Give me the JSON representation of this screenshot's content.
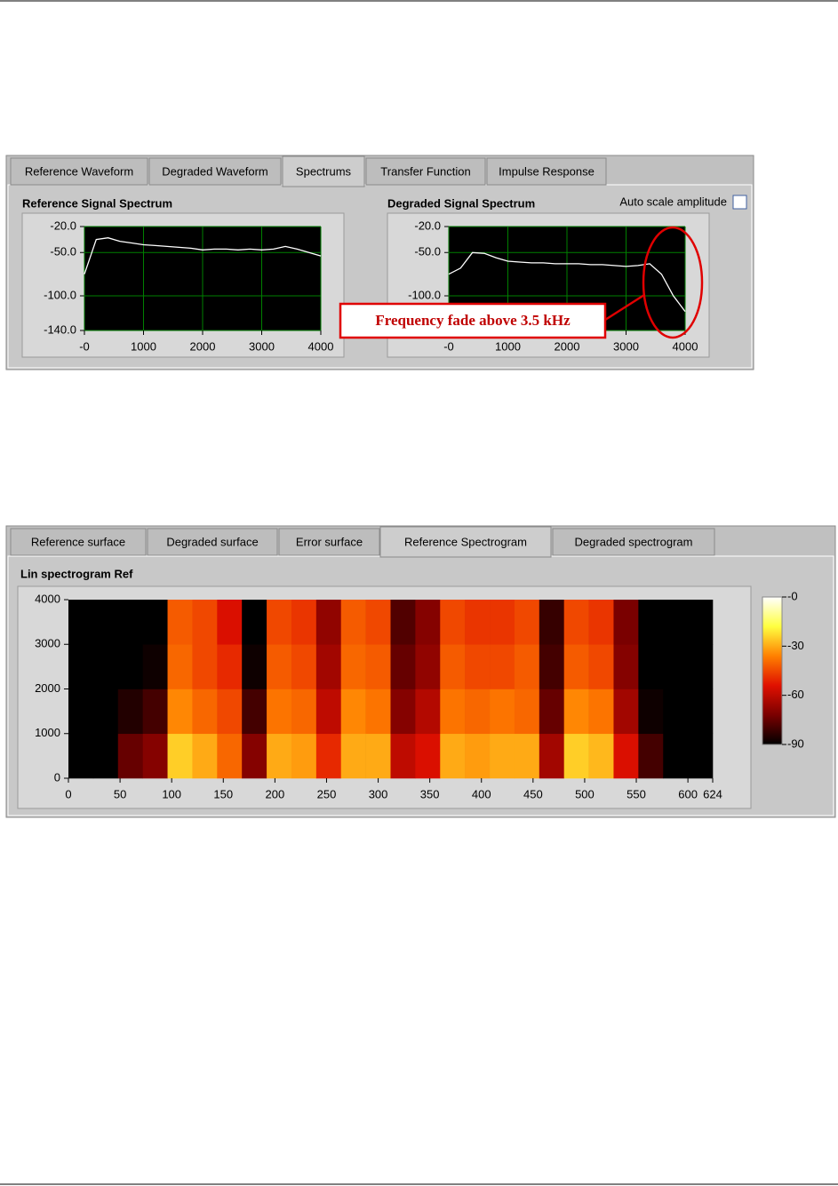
{
  "panel1": {
    "tabs": [
      "Reference Waveform",
      "Degraded Waveform",
      "Spectrums",
      "Transfer Function",
      "Impulse Response"
    ],
    "checkbox_label": "Auto scale amplitude",
    "annotation": "Frequency fade above 3.5 kHz"
  },
  "panel2": {
    "tabs": [
      "Reference surface",
      "Degraded surface",
      "Error surface",
      "Reference Spectrogram",
      "Degraded spectrogram"
    ]
  },
  "chart_data": [
    {
      "type": "line",
      "title": "Reference Signal Spectrum",
      "x": [
        0,
        200,
        400,
        600,
        800,
        1000,
        1200,
        1400,
        1600,
        1800,
        2000,
        2200,
        2400,
        2600,
        2800,
        3000,
        3200,
        3400,
        3600,
        3800,
        4000
      ],
      "values": [
        -75,
        -35,
        -33,
        -37,
        -39,
        -41,
        -42,
        -43,
        -44,
        -45,
        -47,
        -46,
        -46,
        -47,
        -46,
        -47,
        -46,
        -43,
        -46,
        -50,
        -54
      ],
      "color": "#ffffff",
      "xlim": [
        0,
        4000
      ],
      "ylim": [
        -140,
        -20
      ],
      "xticks": [
        {
          "value": 0,
          "label": "-0"
        },
        1000,
        2000,
        3000,
        4000
      ],
      "yticks": [
        {
          "value": -20,
          "label": "-20.0"
        },
        {
          "value": -50,
          "label": "-50.0"
        },
        {
          "value": -100,
          "label": "-100.0"
        },
        {
          "value": -140,
          "label": "-140.0"
        }
      ],
      "grid": true
    },
    {
      "type": "line",
      "title": "Degraded Signal Spectrum",
      "x": [
        0,
        200,
        400,
        600,
        800,
        1000,
        1200,
        1400,
        1600,
        1800,
        2000,
        2200,
        2400,
        2600,
        2800,
        3000,
        3200,
        3400,
        3600,
        3800,
        4000
      ],
      "values": [
        -75,
        -68,
        -50,
        -51,
        -56,
        -60,
        -61,
        -62,
        -62,
        -63,
        -63,
        -63,
        -64,
        -64,
        -65,
        -66,
        -65,
        -63,
        -75,
        -100,
        -118
      ],
      "color": "#ffffff",
      "xlim": [
        0,
        4000
      ],
      "ylim": [
        -140,
        -20
      ],
      "xticks": [
        {
          "value": 0,
          "label": "-0"
        },
        1000,
        2000,
        3000,
        4000
      ],
      "yticks": [
        {
          "value": -20,
          "label": "-20.0"
        },
        {
          "value": -50,
          "label": "-50.0"
        },
        {
          "value": -100,
          "label": "-100.0"
        },
        {
          "value": -140,
          "label": "-140.0"
        }
      ],
      "grid": true
    },
    {
      "type": "heatmap",
      "title": "Lin spectrogram Ref",
      "z": [
        [
          -90,
          -90,
          -75,
          -70,
          -25,
          -30,
          -40,
          -70,
          -30,
          -32,
          -50,
          -30,
          -30,
          -60,
          -55,
          -30,
          -32,
          -30,
          -30,
          -65,
          -25,
          -28,
          -55,
          -80,
          -90,
          -90
        ],
        [
          -90,
          -90,
          -85,
          -80,
          -35,
          -40,
          -45,
          -80,
          -38,
          -40,
          -60,
          -35,
          -38,
          -70,
          -62,
          -38,
          -40,
          -38,
          -40,
          -75,
          -35,
          -38,
          -65,
          -88,
          -90,
          -90
        ],
        [
          -90,
          -90,
          -90,
          -88,
          -40,
          -45,
          -50,
          -88,
          -42,
          -45,
          -65,
          -40,
          -42,
          -75,
          -68,
          -42,
          -45,
          -45,
          -42,
          -80,
          -42,
          -45,
          -70,
          -90,
          -90,
          -90
        ],
        [
          -90,
          -90,
          -90,
          -90,
          -42,
          -45,
          -55,
          -90,
          -45,
          -48,
          -68,
          -42,
          -45,
          -78,
          -70,
          -45,
          -48,
          -48,
          -45,
          -82,
          -45,
          -48,
          -72,
          -90,
          -90,
          -90
        ]
      ],
      "xlim": [
        0,
        624
      ],
      "ylim": [
        0,
        4000
      ],
      "xticks": [
        0,
        50,
        100,
        150,
        200,
        250,
        300,
        350,
        400,
        450,
        500,
        550,
        600,
        624
      ],
      "yticks": [
        0,
        1000,
        2000,
        3000,
        4000
      ],
      "zlim": [
        -90,
        0
      ],
      "zticks": [
        {
          "value": 0,
          "label": "-0"
        },
        -30,
        -60,
        -90
      ],
      "colormap": [
        "#000000",
        "#7a0000",
        "#e01000",
        "#ff8000",
        "#ffff40",
        "#ffffff"
      ]
    }
  ]
}
